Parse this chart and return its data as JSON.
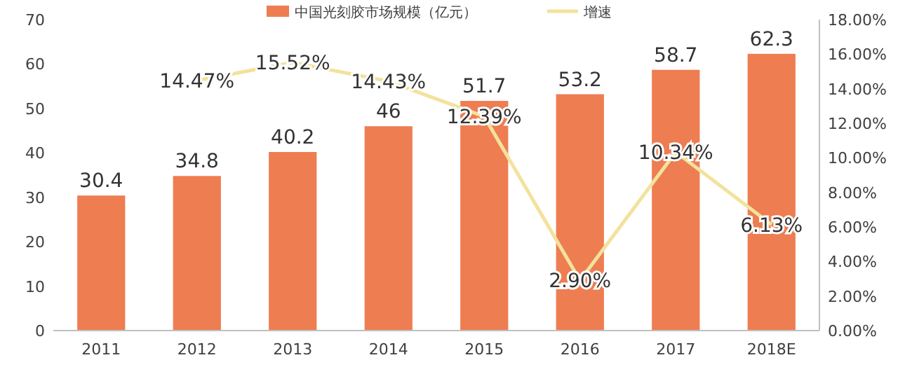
{
  "chart_data": {
    "type": "bar",
    "categories": [
      "2011",
      "2012",
      "2013",
      "2014",
      "2015",
      "2016",
      "2017",
      "2018E"
    ],
    "series": [
      {
        "name": "中国光刻胶市场规模（亿元）",
        "color": "#ee7d52",
        "values": [
          30.4,
          34.8,
          40.2,
          46,
          51.7,
          53.2,
          58.7,
          62.3
        ],
        "value_labels": [
          "30.4",
          "34.8",
          "40.2",
          "46",
          "51.7",
          "53.2",
          "58.7",
          "62.3"
        ]
      },
      {
        "type": "line",
        "name": "增速",
        "color": "#f3e29c",
        "axis": "y2",
        "values": [
          null,
          14.47,
          15.52,
          14.43,
          12.39,
          2.9,
          10.34,
          6.13
        ],
        "value_labels": [
          null,
          "14.47%",
          "15.52%",
          "14.43%",
          "12.39%",
          "2.90%",
          "10.34%",
          "6.13%"
        ]
      }
    ],
    "ylim": [
      0,
      70
    ],
    "yticks": [
      0,
      10,
      20,
      30,
      40,
      50,
      60,
      70
    ],
    "y2lim": [
      0,
      18
    ],
    "y2ticks": [
      {
        "value": 0,
        "label": "0.00%"
      },
      {
        "value": 2,
        "label": "2.00%"
      },
      {
        "value": 4,
        "label": "4.00%"
      },
      {
        "value": 6,
        "label": "6.00%"
      },
      {
        "value": 8,
        "label": "8.00%"
      },
      {
        "value": 10,
        "label": "10.00%"
      },
      {
        "value": 12,
        "label": "12.00%"
      },
      {
        "value": 14,
        "label": "14.00%"
      },
      {
        "value": 16,
        "label": "16.00%"
      },
      {
        "value": 18,
        "label": "18.00%"
      }
    ],
    "legend": "top",
    "marker": "none",
    "line_style": "solid"
  }
}
